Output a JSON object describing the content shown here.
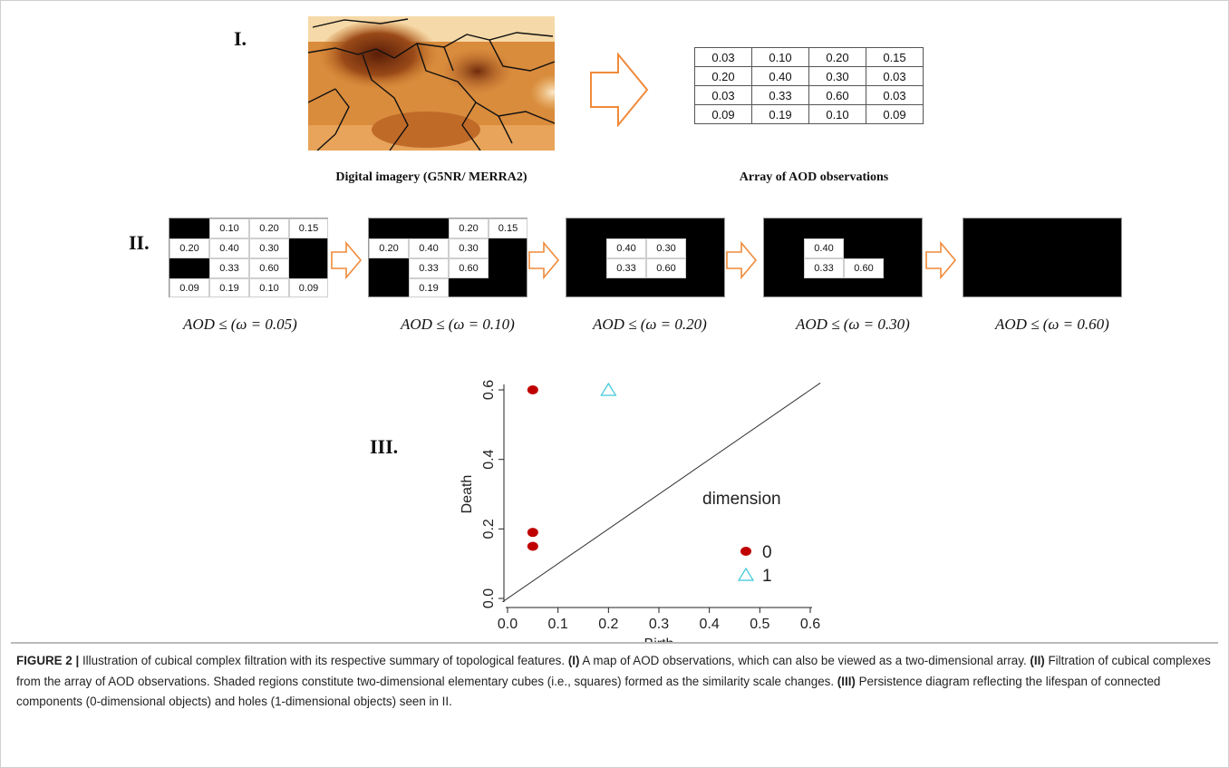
{
  "section_I": {
    "roman": "I.",
    "map_caption": "Digital imagery (G5NR/ MERRA2)",
    "table_caption": "Array of AOD observations",
    "array": [
      [
        "0.03",
        "0.10",
        "0.20",
        "0.15"
      ],
      [
        "0.20",
        "0.40",
        "0.30",
        "0.03"
      ],
      [
        "0.03",
        "0.33",
        "0.60",
        "0.03"
      ],
      [
        "0.09",
        "0.19",
        "0.10",
        "0.09"
      ]
    ]
  },
  "section_II": {
    "roman": "II.",
    "steps": [
      {
        "label": "AOD ≤ (ω = 0.05)"
      },
      {
        "label": "AOD ≤ (ω = 0.10)"
      },
      {
        "label": "AOD ≤ (ω = 0.20)"
      },
      {
        "label": "AOD ≤ (ω = 0.30)"
      },
      {
        "label": "AOD ≤ (ω = 0.60)"
      }
    ]
  },
  "section_III": {
    "roman": "III."
  },
  "chart_data": {
    "type": "scatter",
    "xlabel": "Birth",
    "ylabel": "Death",
    "xlim": [
      0.0,
      0.6
    ],
    "ylim": [
      0.0,
      0.6
    ],
    "xticks": [
      "0.0",
      "0.1",
      "0.2",
      "0.3",
      "0.4",
      "0.5",
      "0.6"
    ],
    "yticks": [
      "0.0",
      "0.2",
      "0.4",
      "0.6"
    ],
    "legend_title": "dimension",
    "legend_placement": "bottom-right",
    "diagonal": true,
    "series": [
      {
        "name": "0",
        "marker": "circle",
        "color": "#c00000",
        "points": [
          [
            0.05,
            0.6
          ],
          [
            0.05,
            0.19
          ],
          [
            0.05,
            0.15
          ]
        ]
      },
      {
        "name": "1",
        "marker": "triangle",
        "color": "#3cc8d8",
        "points": [
          [
            0.2,
            0.6
          ]
        ]
      }
    ]
  },
  "caption": {
    "fig_label": "FIGURE 2 |",
    "intro": " Illustration of cubical complex filtration with its respective summary of topological features. ",
    "p1_label": "(I)",
    "p1_text": " A map of AOD observations, which can also be viewed as a two-dimensional array. ",
    "p2_label": "(II)",
    "p2_text": " Filtration of cubical complexes from the array of AOD observations. Shaded regions constitute two-dimensional elementary cubes (i.e., squares) formed as the similarity scale changes. ",
    "p3_label": "(III)",
    "p3_text": " Persistence diagram reflecting the lifespan of connected components (0-dimensional objects) and holes (1-dimensional objects) seen in II."
  }
}
